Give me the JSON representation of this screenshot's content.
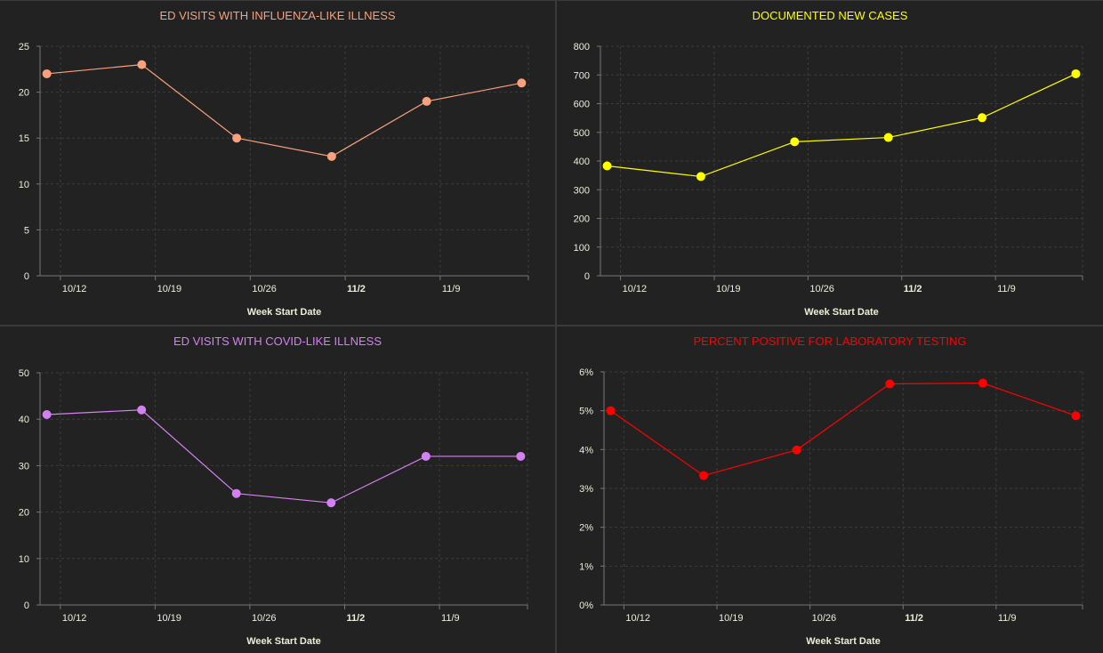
{
  "chart_data": [
    {
      "type": "line",
      "title": "ED VISITS WITH INFLUENZA-LIKE ILLNESS",
      "color": "#f9a07c",
      "xlabel": "Week Start Date",
      "ylabel": "",
      "x": [
        "10/11",
        "10/18",
        "10/25",
        "11/1",
        "11/8",
        "11/15"
      ],
      "values": [
        22,
        23,
        15,
        13,
        19,
        21
      ],
      "ylim": [
        0,
        25
      ],
      "yticks": [
        0,
        5,
        10,
        15,
        20,
        25
      ],
      "ytick_labels": [
        "0",
        "5",
        "10",
        "15",
        "20",
        "25"
      ],
      "xtick_labels": [
        "10/12",
        "10/19",
        "10/26",
        "11/2",
        "11/9"
      ],
      "grid": true
    },
    {
      "type": "line",
      "title": "DOCUMENTED NEW CASES",
      "color": "#ffff00",
      "xlabel": "Week Start Date",
      "ylabel": "",
      "x": [
        "10/11",
        "10/18",
        "10/25",
        "11/1",
        "11/8",
        "11/15"
      ],
      "values": [
        383,
        346,
        467,
        482,
        551,
        704
      ],
      "ylim": [
        0,
        800
      ],
      "yticks": [
        0,
        100,
        200,
        300,
        400,
        500,
        600,
        700,
        800
      ],
      "ytick_labels": [
        "0",
        "100",
        "200",
        "300",
        "400",
        "500",
        "600",
        "700",
        "800"
      ],
      "xtick_labels": [
        "10/12",
        "10/19",
        "10/26",
        "11/2",
        "11/9"
      ],
      "grid": true
    },
    {
      "type": "line",
      "title": "ED VISITS WITH COVID-LIKE ILLNESS",
      "color": "#d580f2",
      "xlabel": "Week Start Date",
      "ylabel": "",
      "x": [
        "10/11",
        "10/18",
        "10/25",
        "11/1",
        "11/8",
        "11/15"
      ],
      "values": [
        41,
        42,
        24,
        22,
        32,
        32
      ],
      "ylim": [
        0,
        50
      ],
      "yticks": [
        0,
        10,
        20,
        30,
        40,
        50
      ],
      "ytick_labels": [
        "0",
        "10",
        "20",
        "30",
        "40",
        "50"
      ],
      "xtick_labels": [
        "10/12",
        "10/19",
        "10/26",
        "11/2",
        "11/9"
      ],
      "grid": true
    },
    {
      "type": "line",
      "title": "PERCENT POSITIVE FOR LABORATORY TESTING",
      "color": "#ff0000",
      "xlabel": "Week Start Date",
      "ylabel": "",
      "x": [
        "10/11",
        "10/18",
        "10/25",
        "11/1",
        "11/8",
        "11/15"
      ],
      "values": [
        5.0,
        3.33,
        3.99,
        5.69,
        5.71,
        4.87
      ],
      "ylim": [
        0,
        6
      ],
      "yticks": [
        0,
        1,
        2,
        3,
        4,
        5,
        6
      ],
      "ytick_labels": [
        "0%",
        "1%",
        "2%",
        "3%",
        "4%",
        "5%",
        "6%"
      ],
      "xtick_labels": [
        "10/12",
        "10/19",
        "10/26",
        "11/2",
        "11/9"
      ],
      "grid": true
    }
  ]
}
